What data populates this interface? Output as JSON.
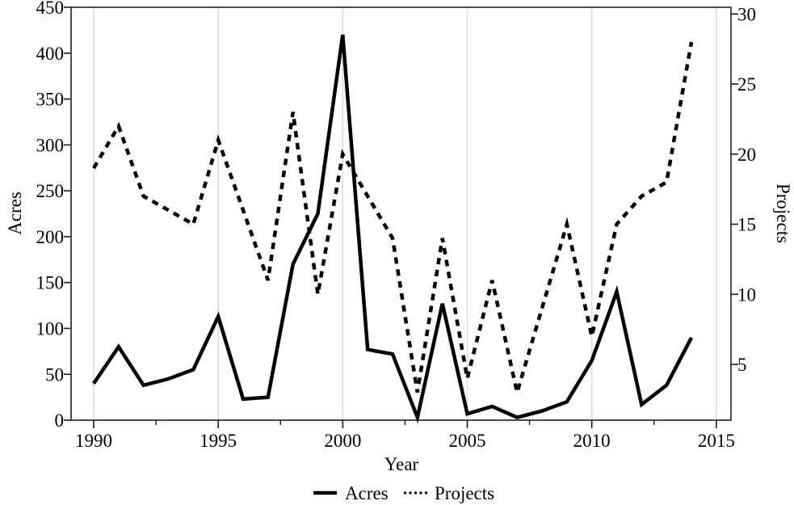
{
  "figure": {
    "background_color": "#ffffff",
    "line_color": "#000000",
    "grid_color": "#d9d9d9",
    "axis_box_color": "#4d4d4d",
    "tick_color": "#1a1a1a"
  },
  "chart_data": {
    "type": "line",
    "title": "",
    "xlabel": "Year",
    "ylabel_left": "Acres",
    "ylabel_right": "Projects",
    "x": [
      1990,
      1991,
      1992,
      1993,
      1994,
      1995,
      1996,
      1997,
      1998,
      1999,
      2000,
      2001,
      2002,
      2003,
      2004,
      2005,
      2006,
      2007,
      2008,
      2009,
      2010,
      2011,
      2012,
      2013,
      2014
    ],
    "series": [
      {
        "name": "Acres",
        "axis": "left",
        "line_style": "solid",
        "color": "#000000",
        "values": [
          40,
          80,
          38,
          45,
          55,
          113,
          23,
          25,
          170,
          225,
          420,
          77,
          72,
          3,
          127,
          7,
          15,
          3,
          10,
          20,
          65,
          140,
          17,
          38,
          90
        ]
      },
      {
        "name": "Projects",
        "axis": "right",
        "line_style": "dashed",
        "color": "#000000",
        "values": [
          19,
          22,
          17,
          16,
          15,
          21,
          16,
          11,
          23,
          10,
          20,
          17,
          14,
          3,
          14,
          4,
          11,
          3,
          9,
          15,
          7,
          15,
          17,
          18,
          28
        ]
      }
    ],
    "ylim_left": [
      0,
      450
    ],
    "yticks_left": [
      0,
      50,
      100,
      150,
      200,
      250,
      300,
      350,
      400,
      450
    ],
    "yticks_right": [
      5,
      10,
      15,
      20,
      25,
      30
    ],
    "xticks": [
      1990,
      1995,
      2000,
      2005,
      2010,
      2015
    ],
    "x_minor_ticks": [
      1992.5,
      1997.5,
      2002.5,
      2007.5,
      2012.5
    ],
    "grid": {
      "vertical": true,
      "horizontal": false
    },
    "legend": {
      "position": "bottom-center",
      "entries": [
        "Acres",
        "Projects"
      ]
    }
  }
}
